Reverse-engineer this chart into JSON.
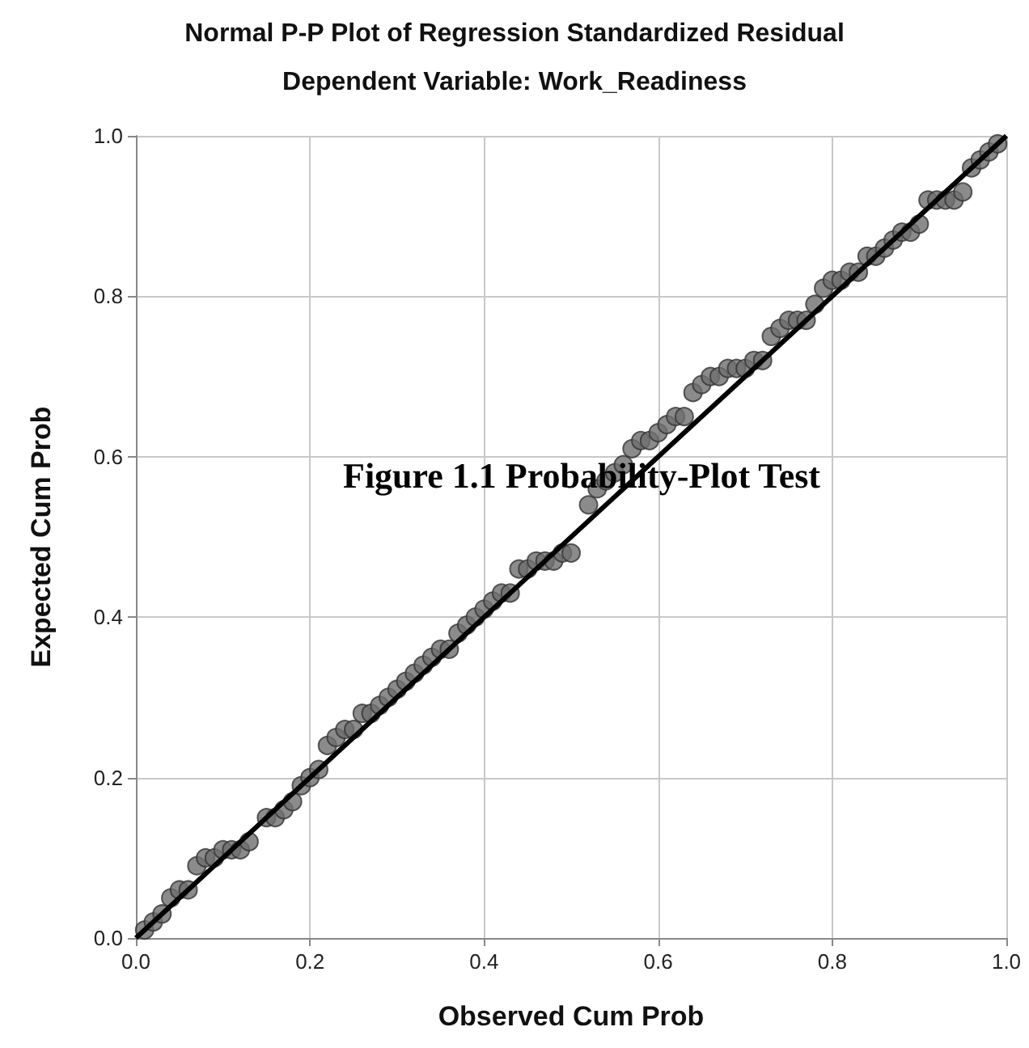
{
  "chart_data": {
    "type": "scatter",
    "title": "Normal P-P Plot of Regression Standardized Residual",
    "subtitle": "Dependent Variable: Work_Readiness",
    "xlabel": "Observed Cum Prob",
    "ylabel": "Expected Cum Prob",
    "annotations": [
      "Figure 1.1 Probability-Plot Test"
    ],
    "xlim": [
      0,
      1
    ],
    "ylim": [
      0,
      1
    ],
    "xticks": [
      {
        "value": 0,
        "label": "0.0"
      },
      0.2,
      0.4,
      0.6,
      0.8,
      {
        "value": 1,
        "label": "1.0"
      }
    ],
    "yticks": [
      {
        "value": 0,
        "label": "0.0"
      },
      0.2,
      0.4,
      0.6,
      0.8,
      {
        "value": 1,
        "label": "1.0"
      }
    ],
    "grid": true,
    "series": [
      {
        "marker": "circle",
        "color": "#6e6e6e",
        "x": [
          0.01,
          0.02,
          0.03,
          0.04,
          0.05,
          0.06,
          0.07,
          0.08,
          0.09,
          0.1,
          0.11,
          0.12,
          0.13,
          0.15,
          0.16,
          0.17,
          0.18,
          0.19,
          0.2,
          0.21,
          0.22,
          0.23,
          0.24,
          0.25,
          0.26,
          0.27,
          0.28,
          0.29,
          0.3,
          0.31,
          0.32,
          0.33,
          0.34,
          0.35,
          0.36,
          0.37,
          0.38,
          0.39,
          0.4,
          0.41,
          0.42,
          0.43,
          0.44,
          0.45,
          0.46,
          0.47,
          0.48,
          0.49,
          0.5,
          0.52,
          0.53,
          0.54,
          0.55,
          0.56,
          0.57,
          0.58,
          0.59,
          0.6,
          0.61,
          0.62,
          0.63,
          0.64,
          0.65,
          0.66,
          0.67,
          0.68,
          0.69,
          0.7,
          0.71,
          0.72,
          0.73,
          0.74,
          0.75,
          0.76,
          0.77,
          0.78,
          0.79,
          0.8,
          0.81,
          0.82,
          0.83,
          0.84,
          0.85,
          0.86,
          0.87,
          0.88,
          0.89,
          0.9,
          0.91,
          0.92,
          0.93,
          0.94,
          0.95,
          0.96,
          0.97,
          0.98,
          0.99
        ],
        "values": [
          0.01,
          0.02,
          0.03,
          0.05,
          0.06,
          0.06,
          0.09,
          0.1,
          0.1,
          0.11,
          0.11,
          0.11,
          0.12,
          0.15,
          0.15,
          0.16,
          0.17,
          0.19,
          0.2,
          0.21,
          0.24,
          0.25,
          0.26,
          0.26,
          0.28,
          0.28,
          0.29,
          0.3,
          0.31,
          0.32,
          0.33,
          0.34,
          0.35,
          0.36,
          0.36,
          0.38,
          0.39,
          0.4,
          0.41,
          0.42,
          0.43,
          0.43,
          0.46,
          0.46,
          0.47,
          0.47,
          0.47,
          0.48,
          0.48,
          0.54,
          0.56,
          0.57,
          0.58,
          0.59,
          0.61,
          0.62,
          0.62,
          0.63,
          0.64,
          0.65,
          0.65,
          0.68,
          0.69,
          0.7,
          0.7,
          0.71,
          0.71,
          0.71,
          0.72,
          0.72,
          0.75,
          0.76,
          0.77,
          0.77,
          0.77,
          0.79,
          0.81,
          0.82,
          0.82,
          0.83,
          0.83,
          0.85,
          0.85,
          0.86,
          0.87,
          0.88,
          0.88,
          0.89,
          0.92,
          0.92,
          0.92,
          0.92,
          0.93,
          0.96,
          0.97,
          0.98,
          0.99
        ]
      },
      {
        "type": "line",
        "marker": "none",
        "color": "#000000",
        "x": [
          0,
          1
        ],
        "values": [
          0,
          1
        ]
      }
    ]
  }
}
